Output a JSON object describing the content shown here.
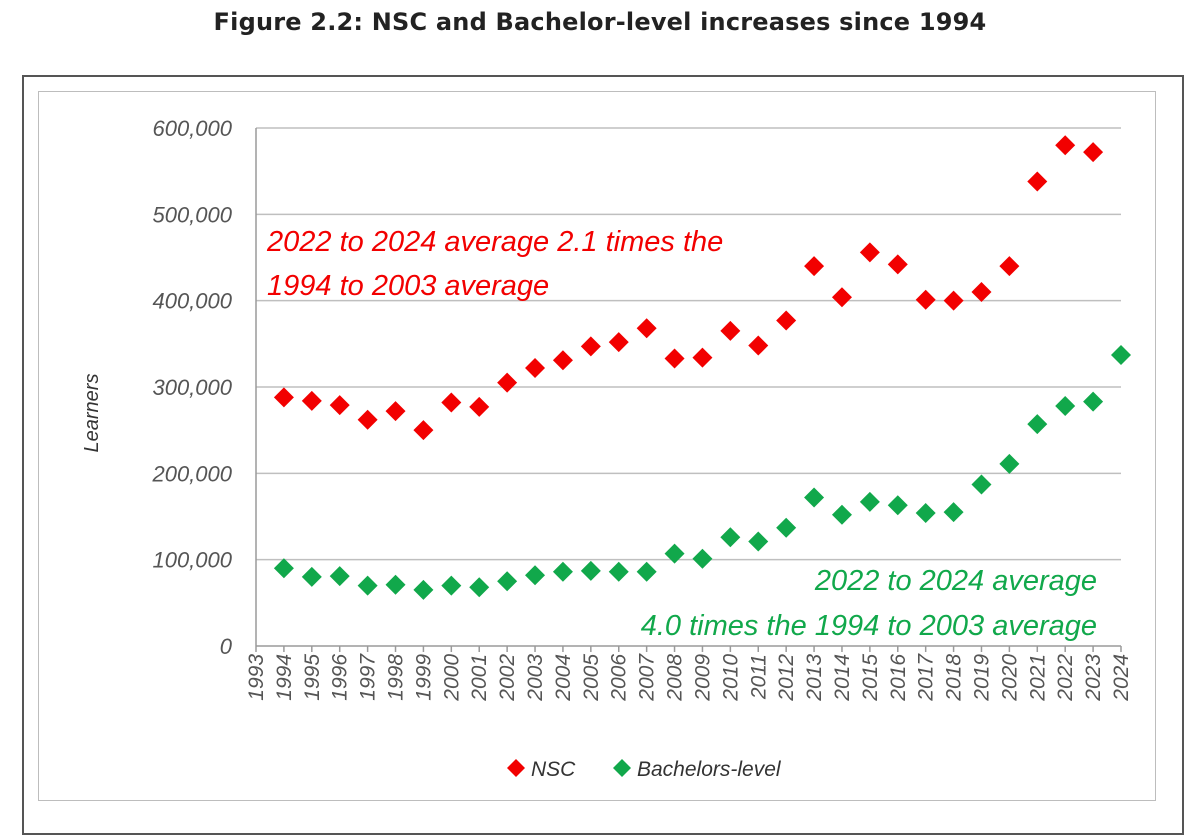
{
  "title": "Figure 2.2: NSC and Bachelor-level increases since 1994",
  "colors": {
    "nsc": "#f20000",
    "bachelors": "#11a84b",
    "grid": "#bfbfbf",
    "axis": "#9a9a9a"
  },
  "chart_data": {
    "type": "scatter",
    "title": "Figure 2.2: NSC and Bachelor-level increases since 1994",
    "xlabel": "",
    "ylabel": "Learners",
    "xlim": [
      1993,
      2024
    ],
    "ylim": [
      0,
      600000
    ],
    "grid": "horizontal",
    "legend_position": "bottom",
    "x_ticks": [
      "1993",
      "1994",
      "1995",
      "1996",
      "1997",
      "1998",
      "1999",
      "2000",
      "2001",
      "2002",
      "2003",
      "2004",
      "2005",
      "2006",
      "2007",
      "2008",
      "2009",
      "2010",
      "2011",
      "2012",
      "2013",
      "2014",
      "2015",
      "2016",
      "2017",
      "2018",
      "2019",
      "2020",
      "2021",
      "2022",
      "2023",
      "2024"
    ],
    "y_ticks": [
      {
        "value": 0,
        "label": "0"
      },
      {
        "value": 100000,
        "label": "100,000"
      },
      {
        "value": 200000,
        "label": "200,000"
      },
      {
        "value": 300000,
        "label": "300,000"
      },
      {
        "value": 400000,
        "label": "400,000"
      },
      {
        "value": 500000,
        "label": "500,000"
      },
      {
        "value": 600000,
        "label": "600,000"
      }
    ],
    "series": [
      {
        "name": "NSC",
        "x": [
          1994,
          1995,
          1996,
          1997,
          1998,
          1999,
          2000,
          2001,
          2002,
          2003,
          2004,
          2005,
          2006,
          2007,
          2008,
          2009,
          2010,
          2011,
          2012,
          2013,
          2014,
          2015,
          2016,
          2017,
          2018,
          2019,
          2020,
          2021,
          2022,
          2023
        ],
        "y": [
          288000,
          284000,
          279000,
          262000,
          272000,
          250000,
          282000,
          277000,
          305000,
          322000,
          331000,
          347000,
          352000,
          368000,
          333000,
          334000,
          365000,
          348000,
          377000,
          440000,
          404000,
          456000,
          442000,
          401000,
          400000,
          410000,
          440000,
          538000,
          580000,
          572000
        ]
      },
      {
        "name": "Bachelors-level",
        "x": [
          1994,
          1995,
          1996,
          1997,
          1998,
          1999,
          2000,
          2001,
          2002,
          2003,
          2004,
          2005,
          2006,
          2007,
          2008,
          2009,
          2010,
          2011,
          2012,
          2013,
          2014,
          2015,
          2016,
          2017,
          2018,
          2019,
          2020,
          2021,
          2022,
          2023,
          2024
        ],
        "y": [
          90000,
          80000,
          81000,
          70000,
          71000,
          65000,
          70000,
          68000,
          75000,
          82000,
          86000,
          87000,
          86000,
          86000,
          107000,
          101000,
          126000,
          121000,
          137000,
          172000,
          152000,
          167000,
          163000,
          154000,
          155000,
          187000,
          211000,
          257000,
          278000,
          283000,
          337000
        ]
      }
    ],
    "annotations": [
      {
        "lines": [
          "2022 to 2024 average 2.1 times the",
          "1994 to 2003 average"
        ],
        "series": "NSC"
      },
      {
        "lines": [
          "2022 to 2024 average",
          "4.0 times the 1994 to 2003 average"
        ],
        "series": "Bachelors-level"
      }
    ]
  }
}
